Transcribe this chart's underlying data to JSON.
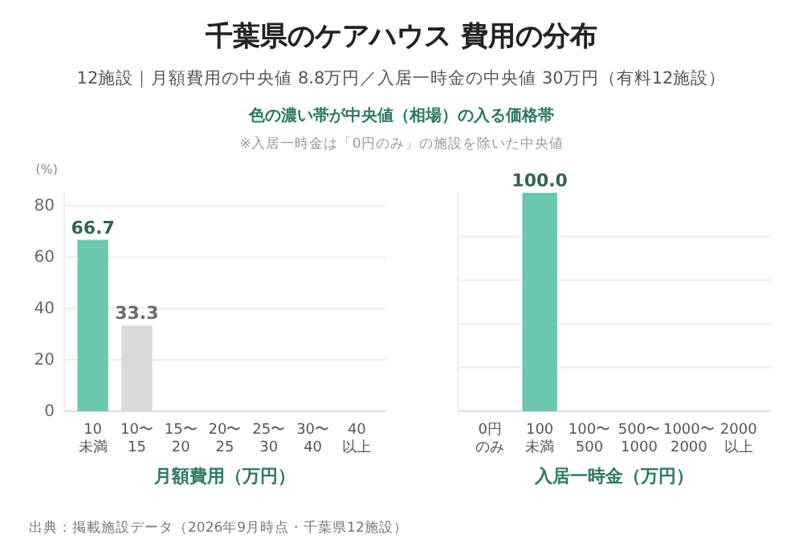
{
  "chart_data": [
    {
      "type": "bar",
      "title": "千葉県のケアハウス 費用の分布",
      "subtitle": "12施設｜月額費用の中央値 8.8万円／入居一時金の中央値 30万円（有料12施設）",
      "annotations": [
        "色の濃い帯が中央値（相場）の入る価格帯",
        "※入居一時金は「0円のみ」の施設を除いた中央値",
        "出典：掲載施設データ（2026年9月時点・千葉県12施設）"
      ],
      "categories": [
        "10未満",
        "10〜15",
        "15〜20",
        "20〜25",
        "25〜30",
        "30〜40",
        "40以上"
      ],
      "values": [
        66.7,
        33.3,
        0,
        0,
        0,
        0,
        0
      ],
      "colors": [
        "#6cc7b0",
        "#d9d9d9",
        "#d9d9d9",
        "#d9d9d9",
        "#d9d9d9",
        "#d9d9d9",
        "#d9d9d9"
      ],
      "value_labels": [
        "66.7",
        "33.3",
        null,
        null,
        null,
        null,
        null
      ],
      "xlabel": "月額費用（万円）",
      "ylabel": "(%)",
      "ylim": [
        0,
        85
      ],
      "yticks": [
        0,
        20,
        40,
        60,
        80
      ],
      "grid": "y"
    },
    {
      "type": "bar",
      "categories": [
        "0円のみ",
        "100未満",
        "100〜500",
        "500〜1000",
        "1000〜2000",
        "2000以上"
      ],
      "values": [
        0,
        100,
        0,
        0,
        0,
        0
      ],
      "colors": [
        "#d9d9d9",
        "#6cc7b0",
        "#d9d9d9",
        "#d9d9d9",
        "#d9d9d9",
        "#d9d9d9"
      ],
      "value_labels": [
        null,
        "100.0",
        null,
        null,
        null,
        null
      ],
      "xlabel": "入居一時金（万円）",
      "ylim": [
        0,
        100
      ],
      "yticks": [
        {
          "value": 0,
          "label": null
        },
        {
          "value": 20,
          "label": null
        },
        {
          "value": 40,
          "label": null
        },
        {
          "value": 60,
          "label": null
        },
        {
          "value": 80,
          "label": null
        }
      ],
      "grid": "y",
      "tick_labels": "x"
    }
  ]
}
